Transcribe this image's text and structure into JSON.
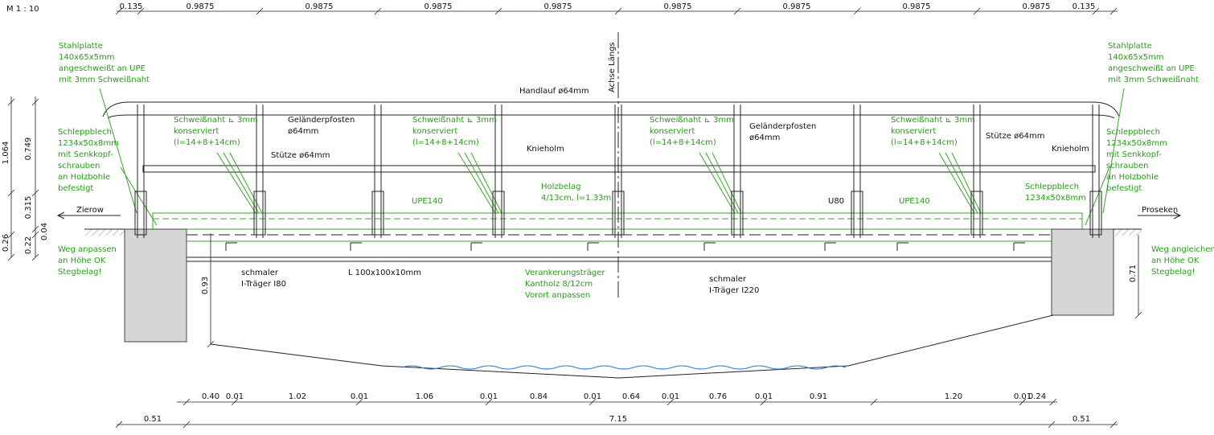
{
  "scale": "M 1 : 10",
  "dimensions": {
    "top": [
      "0.135",
      "0.9875",
      "0.9875",
      "0.9875",
      "0.9875",
      "0.9875",
      "0.9875",
      "0.9875",
      "0.9875",
      "0.135"
    ],
    "bottom_segments": [
      "0.40",
      "0.01",
      "1.02",
      "0.01",
      "1.06",
      "0.01",
      "0.84",
      "0.01",
      "0.64",
      "0.01",
      "0.76",
      "0.01",
      "0.91",
      "1.20",
      "0.01",
      "0.24"
    ],
    "bottom_total": [
      "0.51",
      "7.15",
      "0.51"
    ],
    "vertical": [
      "1.064",
      "0.749",
      "0.315",
      "0.26",
      "0.22",
      "0.04",
      "0.93",
      "0.71"
    ]
  },
  "labels": [
    {
      "lines": [
        "Stahlplatte",
        "140x65x5mm",
        "angeschweißt an UPE",
        "mit 3mm Schweißnaht"
      ]
    },
    {
      "lines": [
        "Stahlplatte",
        "140x65x5mm",
        "angeschweißt an UPE",
        "mit 3mm Schweißnaht"
      ]
    },
    {
      "lines": [
        "Schleppblech",
        "1234x50x8mm",
        "mit Senkkopf-",
        "schrauben",
        "an Holzbohle",
        "befestigt"
      ]
    },
    {
      "lines": [
        "Schleppblech",
        "1234x50x8mm",
        "mit Senkkopf-",
        "schrauben",
        "an Holzbohle",
        "befestigt"
      ]
    },
    {
      "lines": [
        "Weg anpassen",
        "an Höhe OK",
        "Stegbelag!"
      ]
    },
    {
      "lines": [
        "Weg angleichen",
        "an Höhe OK",
        "Stegbelag!"
      ]
    },
    {
      "lines": [
        "Schweißnaht ⊾ 3mm",
        "konserviert",
        "(l=14+8+14cm)"
      ]
    },
    {
      "lines": [
        "Schweißnaht ⊾ 3mm",
        "konserviert",
        "(l=14+8+14cm)"
      ]
    },
    {
      "lines": [
        "Schweißnaht ⊾ 3mm",
        "konserviert",
        "(l=14+8+14cm)"
      ]
    },
    {
      "lines": [
        "Schweißnaht ⊾ 3mm",
        "konserviert",
        "(l=14+8+14cm)"
      ]
    },
    {
      "lines": [
        "Handlauf ø64mm"
      ]
    },
    {
      "lines": [
        "Geländerpfosten",
        "ø64mm"
      ]
    },
    {
      "lines": [
        "Geländerpfosten",
        "ø64mm"
      ]
    },
    {
      "lines": [
        "Stütze ø64mm"
      ]
    },
    {
      "lines": [
        "Stütze ø64mm"
      ]
    },
    {
      "lines": [
        "Knieholm"
      ]
    },
    {
      "lines": [
        "Knieholm"
      ]
    },
    {
      "lines": [
        "UPE140"
      ]
    },
    {
      "lines": [
        "UPE140"
      ]
    },
    {
      "lines": [
        "Holzbelag",
        "4/13cm, l=1.33m"
      ]
    },
    {
      "lines": [
        "U80"
      ]
    },
    {
      "lines": [
        "Schleppblech",
        "1234x50x8mm"
      ]
    },
    {
      "lines": [
        "Zierow"
      ]
    },
    {
      "lines": [
        "Proseken"
      ]
    },
    {
      "lines": [
        "schmaler",
        "I-Träger I80"
      ]
    },
    {
      "lines": [
        "L 100x100x10mm"
      ]
    },
    {
      "lines": [
        "Verankerungsträger",
        "Kantholz 8/12cm",
        "Vorort anpassen"
      ]
    },
    {
      "lines": [
        "schmaler",
        "I-Träger I220"
      ]
    },
    {
      "lines": [
        "Achse Längs"
      ]
    }
  ]
}
